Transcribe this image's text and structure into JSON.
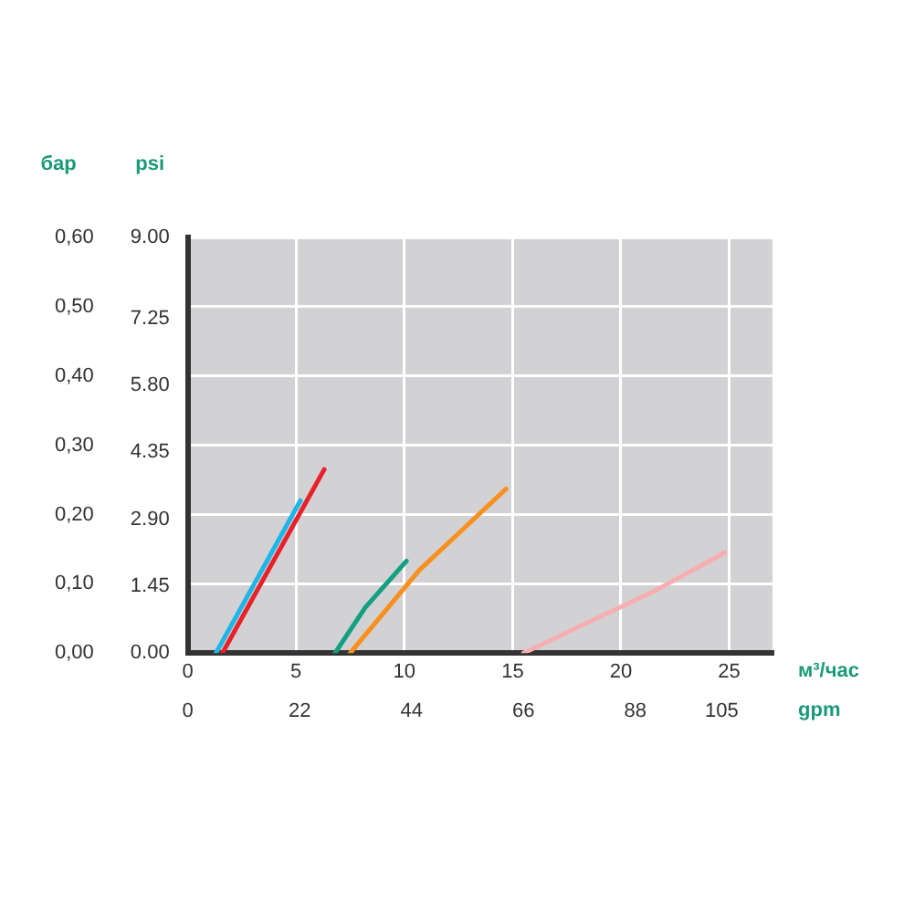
{
  "chart_data": {
    "type": "line",
    "xlabel": "м³/час",
    "x2label": "gpm",
    "ylabel": "бар",
    "y2label": "psi",
    "xlim": [
      0,
      27
    ],
    "xticks": [
      0,
      5,
      10,
      15,
      20,
      25
    ],
    "x2lim": [
      0,
      115
    ],
    "x2ticks": [
      0,
      22,
      44,
      66,
      88,
      105
    ],
    "ylim": [
      0,
      0.6
    ],
    "yticks": [
      {
        "value": 0,
        "label": "0,00"
      },
      {
        "value": 0.1,
        "label": "0,10"
      },
      {
        "value": 0.2,
        "label": "0,20"
      },
      {
        "value": 0.3,
        "label": "0,30"
      },
      {
        "value": 0.4,
        "label": "0,40"
      },
      {
        "value": 0.5,
        "label": "0,50"
      },
      {
        "value": 0.6,
        "label": "0,60"
      }
    ],
    "y2lim": [
      0,
      9
    ],
    "y2ticks": [
      {
        "value": 0,
        "label": "0.00"
      },
      {
        "value": 1.45,
        "label": "1.45"
      },
      {
        "value": 2.9,
        "label": "2.90"
      },
      {
        "value": 4.35,
        "label": "4.35"
      },
      {
        "value": 5.8,
        "label": "5.80"
      },
      {
        "value": 7.25,
        "label": "7.25"
      },
      {
        "value": 9,
        "label": "9.00"
      }
    ],
    "grid": true,
    "legend": false,
    "marker": "none",
    "line_style": "solid",
    "series": [
      {
        "color": "#1fb5e6",
        "x": [
          1.3,
          5.2
        ],
        "values": [
          0,
          0.22
        ]
      },
      {
        "color": "#e8202a",
        "x": [
          1.6,
          6.3
        ],
        "values": [
          0,
          0.265
        ]
      },
      {
        "color": "#13a07f",
        "x": [
          6.8,
          8.2,
          10.1
        ],
        "values": [
          0,
          0.066,
          0.133
        ]
      },
      {
        "color": "#f7901e",
        "x": [
          7.5,
          10.7,
          14.7
        ],
        "values": [
          0,
          0.12,
          0.237
        ]
      },
      {
        "color": "#f7aeb1",
        "x": [
          15.5,
          21.7,
          24.8
        ],
        "values": [
          0,
          0.092,
          0.145
        ]
      }
    ]
  }
}
